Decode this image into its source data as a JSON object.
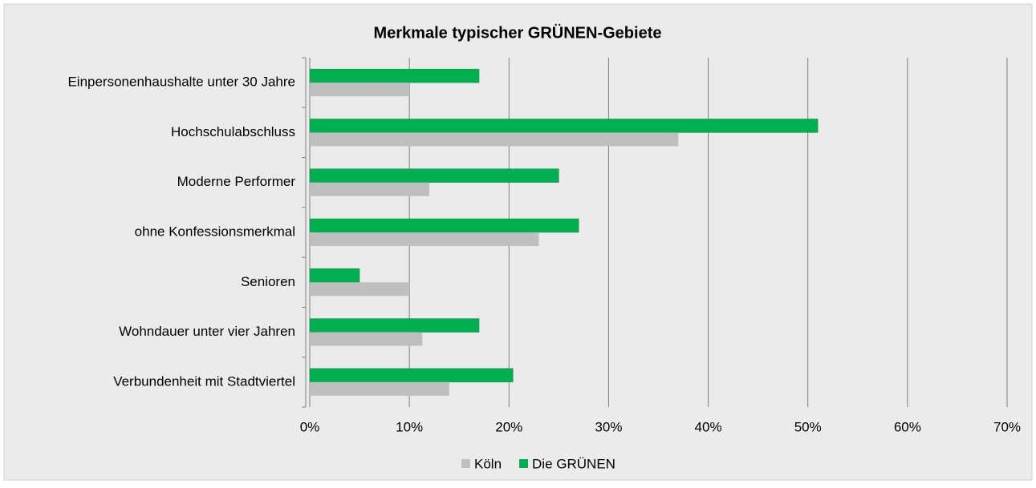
{
  "chart_data": {
    "type": "hbar",
    "title": "Merkmale typischer GRÜNEN-Gebiete",
    "categories": [
      "Einpersonenhaushalte unter 30 Jahre",
      "Hochschulabschluss",
      "Moderne Performer",
      "ohne Konfessionsmerkmal",
      "Senioren",
      "Wohndauer unter vier Jahren",
      "Verbundenheit mit Stadtviertel"
    ],
    "series": [
      {
        "name": "Köln",
        "color": "#bfbfbf",
        "values": [
          10,
          37,
          12,
          23,
          10,
          11.3,
          14
        ]
      },
      {
        "name": "Die GRÜNEN",
        "color": "#00b050",
        "values": [
          17,
          51,
          25,
          27,
          5,
          17,
          20.4
        ]
      }
    ],
    "xlim": [
      0,
      70
    ],
    "xticks": [
      {
        "value": 0,
        "label": "0%"
      },
      {
        "value": 10,
        "label": "10%"
      },
      {
        "value": 20,
        "label": "20%"
      },
      {
        "value": 30,
        "label": "30%"
      },
      {
        "value": 40,
        "label": "40%"
      },
      {
        "value": 50,
        "label": "50%"
      },
      {
        "value": 60,
        "label": "60%"
      },
      {
        "value": 70,
        "label": "70%"
      }
    ],
    "grid": true,
    "legend": "bottom"
  }
}
